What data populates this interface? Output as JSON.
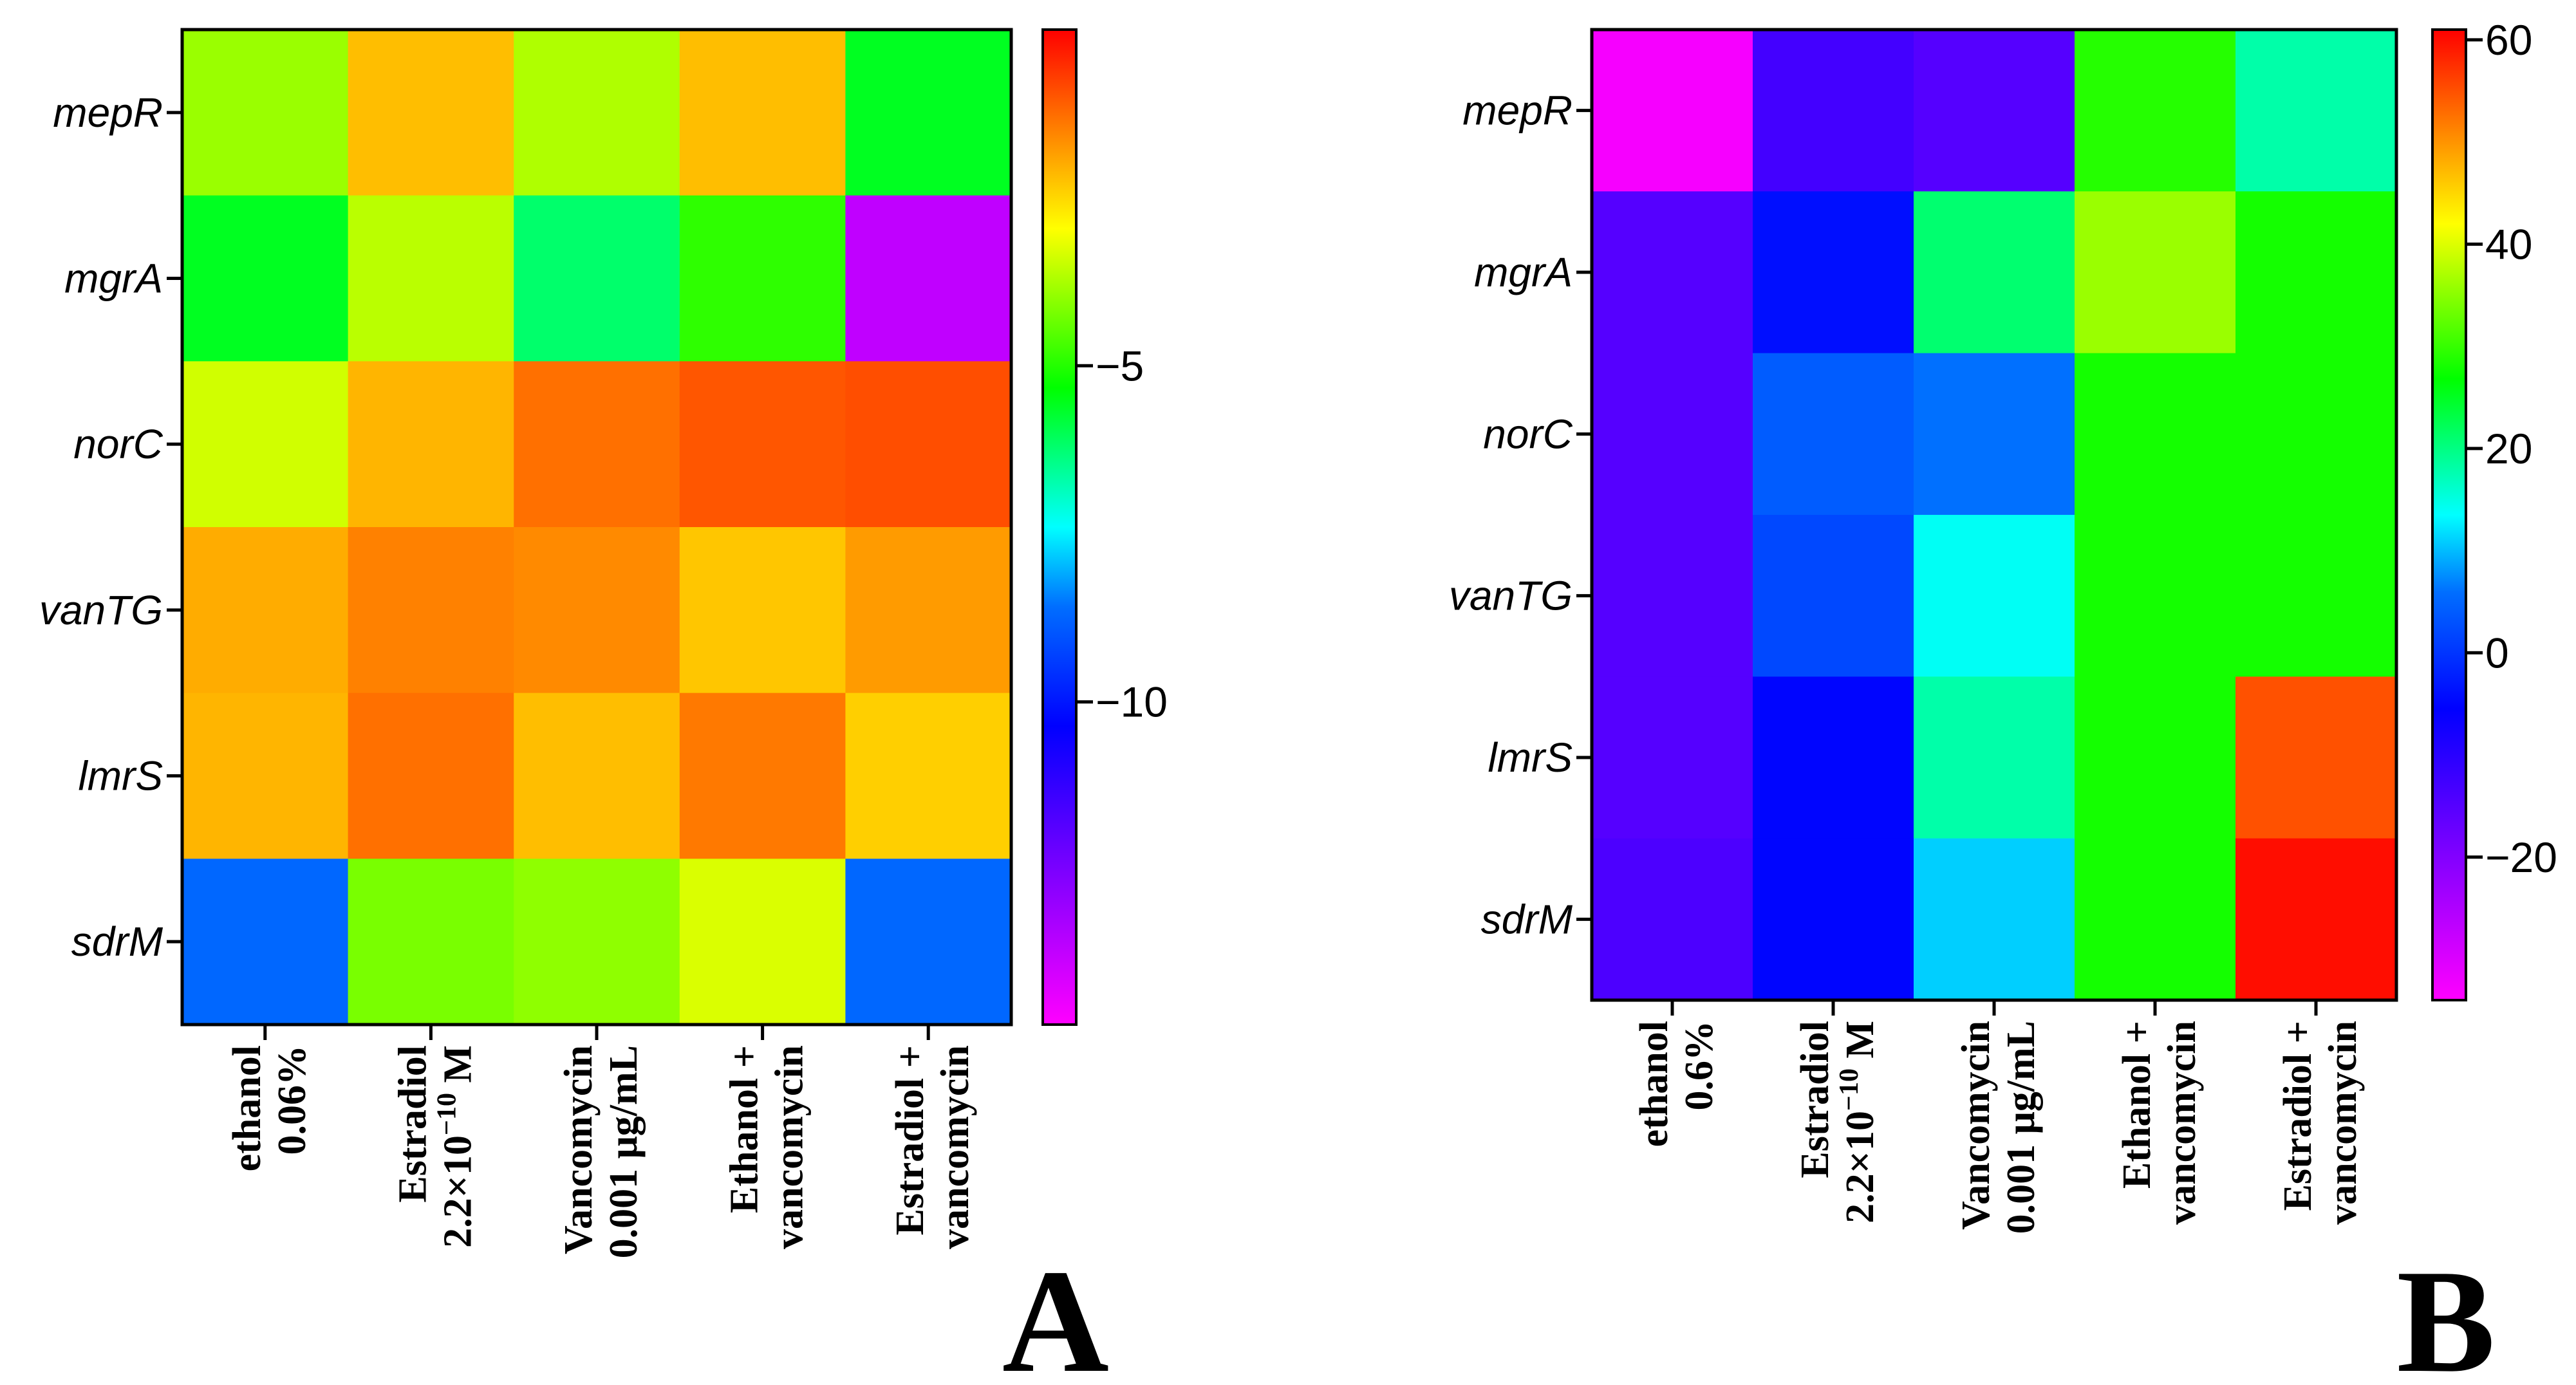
{
  "chart_data": [
    {
      "type": "heatmap",
      "panel_label": "A",
      "rows": [
        "mepR",
        "mgrA",
        "norC",
        "vanTG",
        "lmrS",
        "sdrM"
      ],
      "columns": [
        {
          "line1": "ethanol",
          "line2": "0.06%"
        },
        {
          "line1": "Estradiol",
          "line2_pre": "2.2×10",
          "line2_sup": "−10",
          "line2_post": " M"
        },
        {
          "line1": "Vancomycin",
          "line2": "0.001 μg/mL"
        },
        {
          "line1": "Ethanol +",
          "line2": "vancomycin"
        },
        {
          "line1": "Estradiol +",
          "line2": "vancomycin"
        }
      ],
      "values": [
        [
          -3.9,
          -2.2,
          -3.7,
          -2.2,
          -5.6
        ],
        [
          -5.6,
          -3.6,
          -6.2,
          -4.9,
          -13.7
        ],
        [
          -3.4,
          -2.1,
          -1.3,
          -1.0,
          -0.9
        ],
        [
          -2.0,
          -1.5,
          -1.6,
          -2.3,
          -1.8
        ],
        [
          -2.1,
          -1.3,
          -2.2,
          -1.4,
          -2.4
        ],
        [
          -8.7,
          -4.2,
          -4.0,
          -3.3,
          -8.7
        ]
      ],
      "colorbar": {
        "min": -14.8,
        "max": 0,
        "ticks": [
          {
            "value": -5,
            "label": "−5"
          },
          {
            "value": -10,
            "label": "−10"
          }
        ]
      }
    },
    {
      "type": "heatmap",
      "panel_label": "B",
      "rows": [
        "mepR",
        "mgrA",
        "norC",
        "vanTG",
        "lmrS",
        "sdrM"
      ],
      "columns": [
        {
          "line1": "ethanol",
          "line2": "0.6%"
        },
        {
          "line1": "Estradiol",
          "line2_pre": "2.2×10",
          "line2_sup": "−10",
          "line2_post": " M"
        },
        {
          "line1": "Vancomycin",
          "line2": "0.001 μg/mL"
        },
        {
          "line1": "Ethanol +",
          "line2": "vancomycin"
        },
        {
          "line1": "Estradiol +",
          "line2": "vancomycin"
        }
      ],
      "values": [
        [
          -33,
          -13,
          -15,
          29,
          18
        ],
        [
          -15,
          -4,
          21,
          36,
          28
        ],
        [
          -15,
          4,
          6,
          28,
          28
        ],
        [
          -15,
          2,
          14,
          28,
          28
        ],
        [
          -15,
          -5,
          18,
          28,
          55
        ],
        [
          -14,
          -5,
          11,
          28,
          60
        ]
      ],
      "colorbar": {
        "min": -34,
        "max": 61,
        "ticks": [
          {
            "value": 60,
            "label": "60"
          },
          {
            "value": 40,
            "label": "40"
          },
          {
            "value": 20,
            "label": "20"
          },
          {
            "value": 0,
            "label": "0"
          },
          {
            "value": -20,
            "label": "−20"
          }
        ]
      }
    }
  ]
}
